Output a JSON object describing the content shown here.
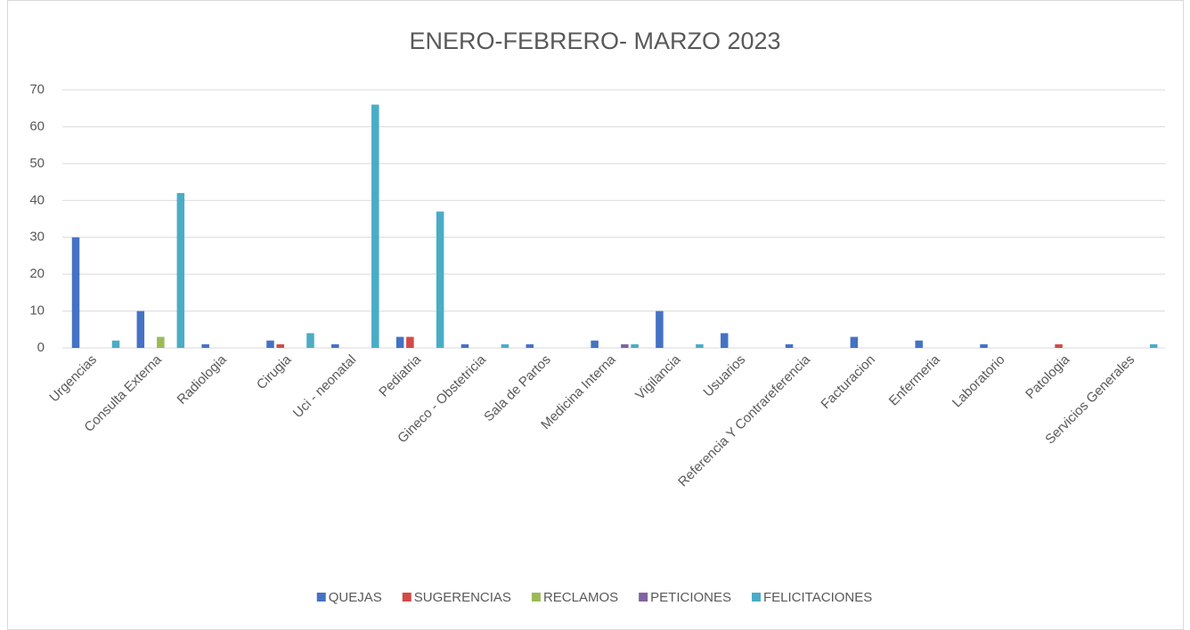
{
  "chart_data": {
    "type": "bar",
    "title": "ENERO-FEBRERO- MARZO 2023",
    "categories": [
      "Urgencias",
      "Consulta Externa",
      "Radiologia",
      "Cirugia",
      "Uci - neonatal",
      "Pediatria",
      "Gineco - Obstetricia",
      "Sala de Partos",
      "Medicina Interna",
      "Vigilancia",
      "Usuarios",
      "Referencia Y Contrareferencia",
      "Facturacion",
      "Enfermeria",
      "Laboratorio",
      "Patologia",
      "Servicios Generales"
    ],
    "series": [
      {
        "name": "QUEJAS",
        "color": "#4472c4",
        "values": [
          30,
          10,
          1,
          2,
          1,
          3,
          1,
          1,
          2,
          10,
          4,
          1,
          3,
          2,
          1,
          0,
          0
        ]
      },
      {
        "name": "SUGERENCIAS",
        "color": "#d24a47",
        "values": [
          0,
          0,
          0,
          1,
          0,
          3,
          0,
          0,
          0,
          0,
          0,
          0,
          0,
          0,
          0,
          1,
          0
        ]
      },
      {
        "name": "RECLAMOS",
        "color": "#9bbb59",
        "values": [
          0,
          3,
          0,
          0,
          0,
          0,
          0,
          0,
          0,
          0,
          0,
          0,
          0,
          0,
          0,
          0,
          0
        ]
      },
      {
        "name": "PETICIONES",
        "color": "#8064a2",
        "values": [
          0,
          0,
          0,
          0,
          0,
          0,
          0,
          0,
          1,
          0,
          0,
          0,
          0,
          0,
          0,
          0,
          0
        ]
      },
      {
        "name": "FELICITACIONES",
        "color": "#4bacc6",
        "values": [
          2,
          42,
          0,
          4,
          66,
          37,
          1,
          0,
          1,
          1,
          0,
          0,
          0,
          0,
          0,
          0,
          1
        ]
      }
    ],
    "ylim": [
      0,
      70
    ],
    "yticks": [
      0,
      10,
      20,
      30,
      40,
      50,
      60,
      70
    ],
    "grid": true,
    "legend": "bottom"
  }
}
